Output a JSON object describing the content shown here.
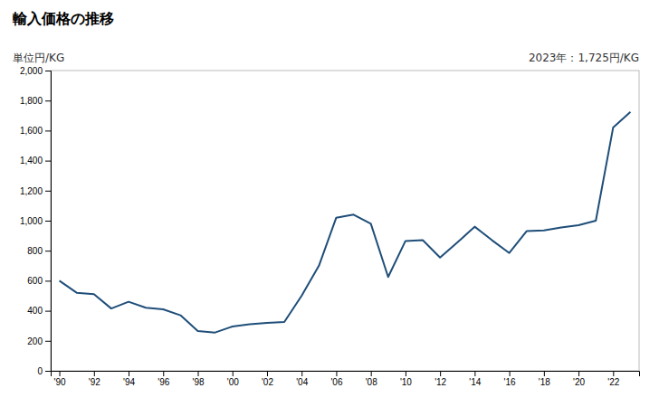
{
  "chart_data": {
    "type": "line",
    "title": "輸入価格の推移",
    "ylabel": "単位円/KG",
    "annotation": "2023年：1,725円/KG",
    "x": [
      1990,
      1991,
      1992,
      1993,
      1994,
      1995,
      1996,
      1997,
      1998,
      1999,
      2000,
      2001,
      2002,
      2003,
      2004,
      2005,
      2006,
      2007,
      2008,
      2009,
      2010,
      2011,
      2012,
      2013,
      2014,
      2015,
      2016,
      2017,
      2018,
      2019,
      2020,
      2021,
      2022,
      2023
    ],
    "values": [
      600,
      520,
      510,
      415,
      460,
      420,
      410,
      370,
      265,
      255,
      295,
      310,
      320,
      325,
      500,
      700,
      1020,
      1040,
      980,
      625,
      865,
      870,
      755,
      855,
      960,
      870,
      785,
      930,
      935,
      955,
      970,
      1000,
      1620,
      1725
    ],
    "color": "#1f4e79",
    "xlim": [
      1989.5,
      2023.5
    ],
    "xticks": [
      {
        "value": 1990,
        "label": "'90"
      },
      {
        "value": 1992,
        "label": "'92"
      },
      {
        "value": 1994,
        "label": "'94"
      },
      {
        "value": 1996,
        "label": "'96"
      },
      {
        "value": 1998,
        "label": "'98"
      },
      {
        "value": 2000,
        "label": "'00"
      },
      {
        "value": 2002,
        "label": "'02"
      },
      {
        "value": 2004,
        "label": "'04"
      },
      {
        "value": 2006,
        "label": "'06"
      },
      {
        "value": 2008,
        "label": "'08"
      },
      {
        "value": 2010,
        "label": "'10"
      },
      {
        "value": 2012,
        "label": "'12"
      },
      {
        "value": 2014,
        "label": "'14"
      },
      {
        "value": 2016,
        "label": "'16"
      },
      {
        "value": 2018,
        "label": "'18"
      },
      {
        "value": 2020,
        "label": "'20"
      },
      {
        "value": 2022,
        "label": "'22"
      }
    ],
    "ylim": [
      0,
      2000
    ],
    "yticks": [
      0,
      200,
      400,
      600,
      800,
      {
        "value": 1000,
        "label": "1,000"
      },
      {
        "value": 1200,
        "label": "1,200"
      },
      {
        "value": 1400,
        "label": "1,400"
      },
      {
        "value": 1600,
        "label": "1,600"
      },
      {
        "value": 1800,
        "label": "1,800"
      },
      {
        "value": 2000,
        "label": "2,000"
      }
    ],
    "grid": false
  }
}
